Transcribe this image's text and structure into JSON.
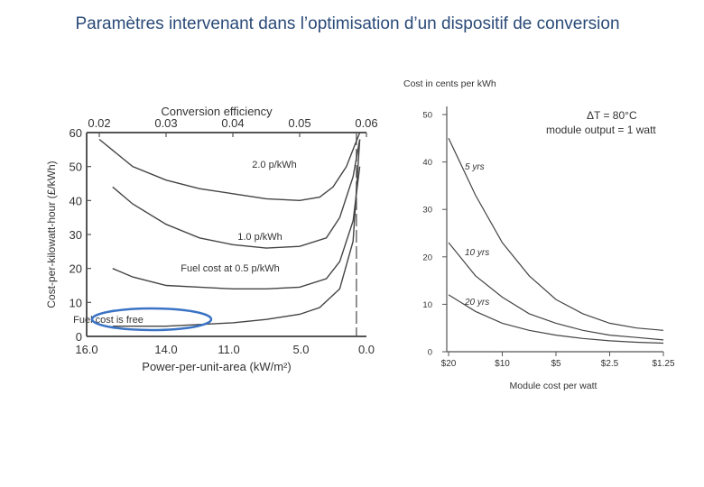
{
  "slide": {
    "title": "Paramètres intervenant dans l’optimisation d’un dispositif de conversion"
  },
  "colors": {
    "title": "#2a4a78",
    "ink": "#333333",
    "highlight": "#3b73c4"
  },
  "chart_data": [
    {
      "type": "line",
      "title": "Conversion efficiency",
      "ylabel": "Cost-per-kilowatt-hour (£/kWh)",
      "xlabel": "Power-per-unit-area (kW/m²)",
      "ylim": [
        0,
        60
      ],
      "y_ticks": [
        "0",
        "10",
        "20",
        "30",
        "40",
        "50",
        "60"
      ],
      "x_bottom_ticks": [
        "16.0",
        "14.0",
        "11.0",
        "5.0",
        "0.0"
      ],
      "x_top_ticks": [
        "0.02",
        "0.03",
        "0.04",
        "0.05",
        "0.06"
      ],
      "limit_marker": 0.06,
      "series": [
        {
          "name": "2.0 p/kWh",
          "label": "2.0 p/kWh",
          "x": [
            0.02,
            0.025,
            0.03,
            0.035,
            0.04,
            0.045,
            0.05,
            0.053,
            0.055,
            0.057,
            0.058,
            0.059
          ],
          "values": [
            58,
            50,
            46,
            43.5,
            42,
            40.5,
            40,
            41,
            44,
            50,
            55,
            60
          ]
        },
        {
          "name": "1.0 p/kWh",
          "label": "1.0 p/kWh",
          "x": [
            0.022,
            0.025,
            0.03,
            0.035,
            0.04,
            0.045,
            0.05,
            0.054,
            0.056,
            0.058,
            0.059
          ],
          "values": [
            44,
            39,
            33,
            29,
            27,
            26,
            26.5,
            29,
            35,
            47,
            58
          ]
        },
        {
          "name": "Fuel cost at 0.5 p/kWh",
          "label": "Fuel cost at 0.5 p/kWh",
          "x": [
            0.022,
            0.025,
            0.03,
            0.035,
            0.04,
            0.045,
            0.05,
            0.054,
            0.056,
            0.058,
            0.059
          ],
          "values": [
            20,
            17.5,
            15,
            14.5,
            14,
            14,
            14.5,
            17,
            22,
            34,
            50
          ]
        },
        {
          "name": "Fuel cost is free",
          "label": "Fuel cost is free",
          "x": [
            0.022,
            0.03,
            0.035,
            0.04,
            0.045,
            0.05,
            0.053,
            0.056,
            0.058,
            0.059
          ],
          "values": [
            3,
            3,
            3.5,
            4,
            5,
            6.5,
            8.5,
            14,
            28,
            58
          ]
        }
      ],
      "highlight": "Fuel cost is free"
    },
    {
      "type": "line",
      "title": "Cost in cents per kWh",
      "ylabel": "Cost in cents per kWh",
      "xlabel": "Module cost per watt",
      "ylim": [
        0,
        50
      ],
      "y_ticks": [
        "0",
        "10",
        "20",
        "30",
        "40",
        "50"
      ],
      "categories": [
        "$20",
        "$10",
        "$5",
        "$2.5",
        "$1.25"
      ],
      "annotations": [
        "ΔT = 80°C",
        "module output = 1 watt"
      ],
      "series": [
        {
          "name": "5 yrs",
          "label": "5 yrs",
          "x": [
            0,
            0.5,
            1,
            1.5,
            2,
            2.5,
            3,
            3.5,
            4
          ],
          "values": [
            45,
            33,
            23,
            16,
            11,
            8,
            6,
            5,
            4.5
          ]
        },
        {
          "name": "10 yrs",
          "label": "10 yrs",
          "x": [
            0,
            0.5,
            1,
            1.5,
            2,
            2.5,
            3,
            3.5,
            4
          ],
          "values": [
            23,
            16,
            11.5,
            8,
            6,
            4.5,
            3.5,
            3,
            2.5
          ]
        },
        {
          "name": "20 yrs",
          "label": "20 yrs",
          "x": [
            0,
            0.5,
            1,
            1.5,
            2,
            2.5,
            3,
            3.5,
            4
          ],
          "values": [
            12,
            8.5,
            6,
            4.5,
            3.5,
            2.8,
            2.3,
            2,
            1.8
          ]
        }
      ]
    }
  ]
}
